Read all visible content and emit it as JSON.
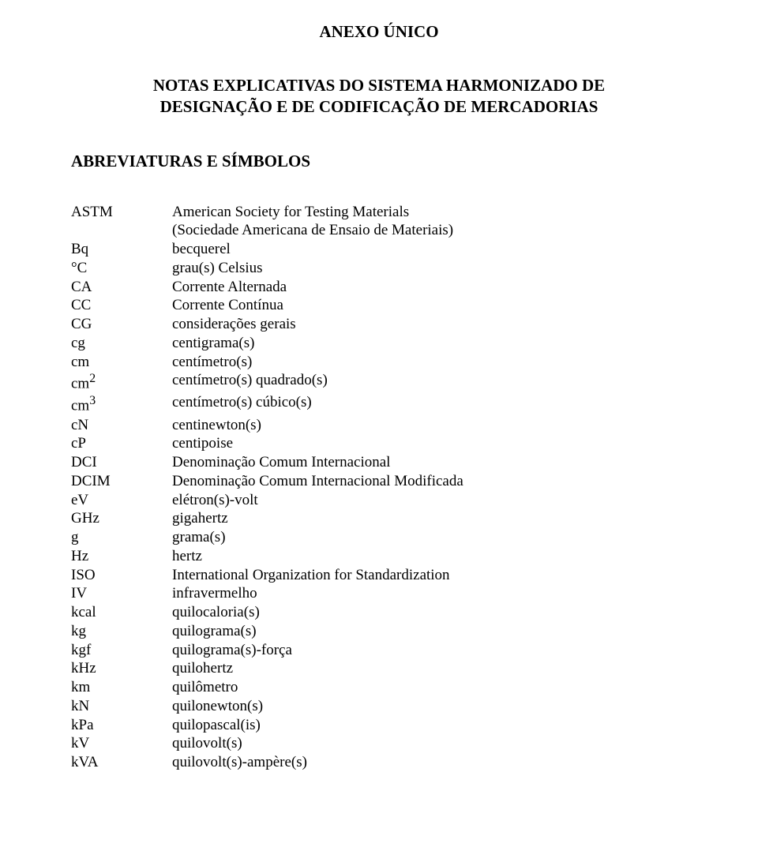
{
  "title": "ANEXO ÚNICO",
  "subtitle_line1": "NOTAS EXPLICATIVAS DO SISTEMA HARMONIZADO DE",
  "subtitle_line2": "DESIGNAÇÃO E DE CODIFICAÇÃO DE MERCADORIAS",
  "section_heading": "ABREVIATURAS E SÍMBOLOS",
  "rows": [
    {
      "abbr": "ASTM",
      "def": "American Society for Testing Materials"
    },
    {
      "abbr": "",
      "def": "(Sociedade Americana de Ensaio de Materiais)"
    },
    {
      "abbr": "Bq",
      "def": "becquerel"
    },
    {
      "abbr": "°C",
      "def": "grau(s) Celsius"
    },
    {
      "abbr": "CA",
      "def": "Corrente Alternada"
    },
    {
      "abbr": "CC",
      "def": "Corrente Contínua"
    },
    {
      "abbr": "CG",
      "def": "considerações gerais"
    },
    {
      "abbr": "cg",
      "def": "centigrama(s)"
    },
    {
      "abbr": "cm",
      "def": "centímetro(s)"
    },
    {
      "abbr": "cm",
      "sup": "2",
      "def": "centímetro(s) quadrado(s)"
    },
    {
      "abbr": "cm",
      "sup": "3",
      "def": "centímetro(s) cúbico(s)"
    },
    {
      "abbr": "cN",
      "def": "centinewton(s)"
    },
    {
      "abbr": "cP",
      "def": "centipoise"
    },
    {
      "abbr": "DCI",
      "def": "Denominação Comum Internacional"
    },
    {
      "abbr": "DCIM",
      "def": "Denominação Comum Internacional Modificada"
    },
    {
      "abbr": "eV",
      "def": "elétron(s)-volt"
    },
    {
      "abbr": "GHz",
      "def": "gigahertz"
    },
    {
      "abbr": "g",
      "def": "grama(s)"
    },
    {
      "abbr": "Hz",
      "def": "hertz"
    },
    {
      "abbr": "ISO",
      "def": "International Organization for Standardization"
    },
    {
      "abbr": "IV",
      "def": "infravermelho"
    },
    {
      "abbr": "kcal",
      "def": "quilocaloria(s)"
    },
    {
      "abbr": "kg",
      "def": "quilograma(s)"
    },
    {
      "abbr": "kgf",
      "def": "quilograma(s)-força"
    },
    {
      "abbr": "kHz",
      "def": "quilohertz"
    },
    {
      "abbr": "km",
      "def": "quilômetro"
    },
    {
      "abbr": "kN",
      "def": "quilonewton(s)"
    },
    {
      "abbr": "kPa",
      "def": "quilopascal(is)"
    },
    {
      "abbr": "kV",
      "def": "quilovolt(s)"
    },
    {
      "abbr": "kVA",
      "def": "quilovolt(s)-ampère(s)"
    }
  ]
}
